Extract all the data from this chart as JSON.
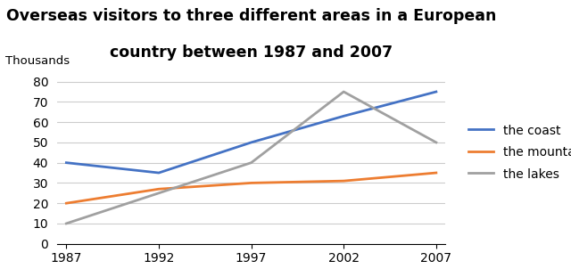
{
  "title_line1": "Overseas visitors to three different areas in a European",
  "title_line2": "country between 1987 and 2007",
  "ylabel": "Thousands",
  "years": [
    1987,
    1992,
    1997,
    2002,
    2007
  ],
  "series": {
    "the coast": {
      "values": [
        40,
        35,
        50,
        63,
        75
      ],
      "color": "#4472C4",
      "linewidth": 2.0
    },
    "the mountains": {
      "values": [
        20,
        27,
        30,
        31,
        35
      ],
      "color": "#ED7D31",
      "linewidth": 2.0
    },
    "the lakes": {
      "values": [
        10,
        25,
        40,
        75,
        50
      ],
      "color": "#A0A0A0",
      "linewidth": 2.0
    }
  },
  "ylim": [
    0,
    82
  ],
  "yticks": [
    0,
    10,
    20,
    30,
    40,
    50,
    60,
    70,
    80
  ],
  "xticks": [
    1987,
    1992,
    1997,
    2002,
    2007
  ],
  "background_color": "#ffffff",
  "grid_color": "#cccccc",
  "title_fontsize": 12.5,
  "ylabel_fontsize": 9.5,
  "legend_fontsize": 10,
  "tick_fontsize": 10
}
